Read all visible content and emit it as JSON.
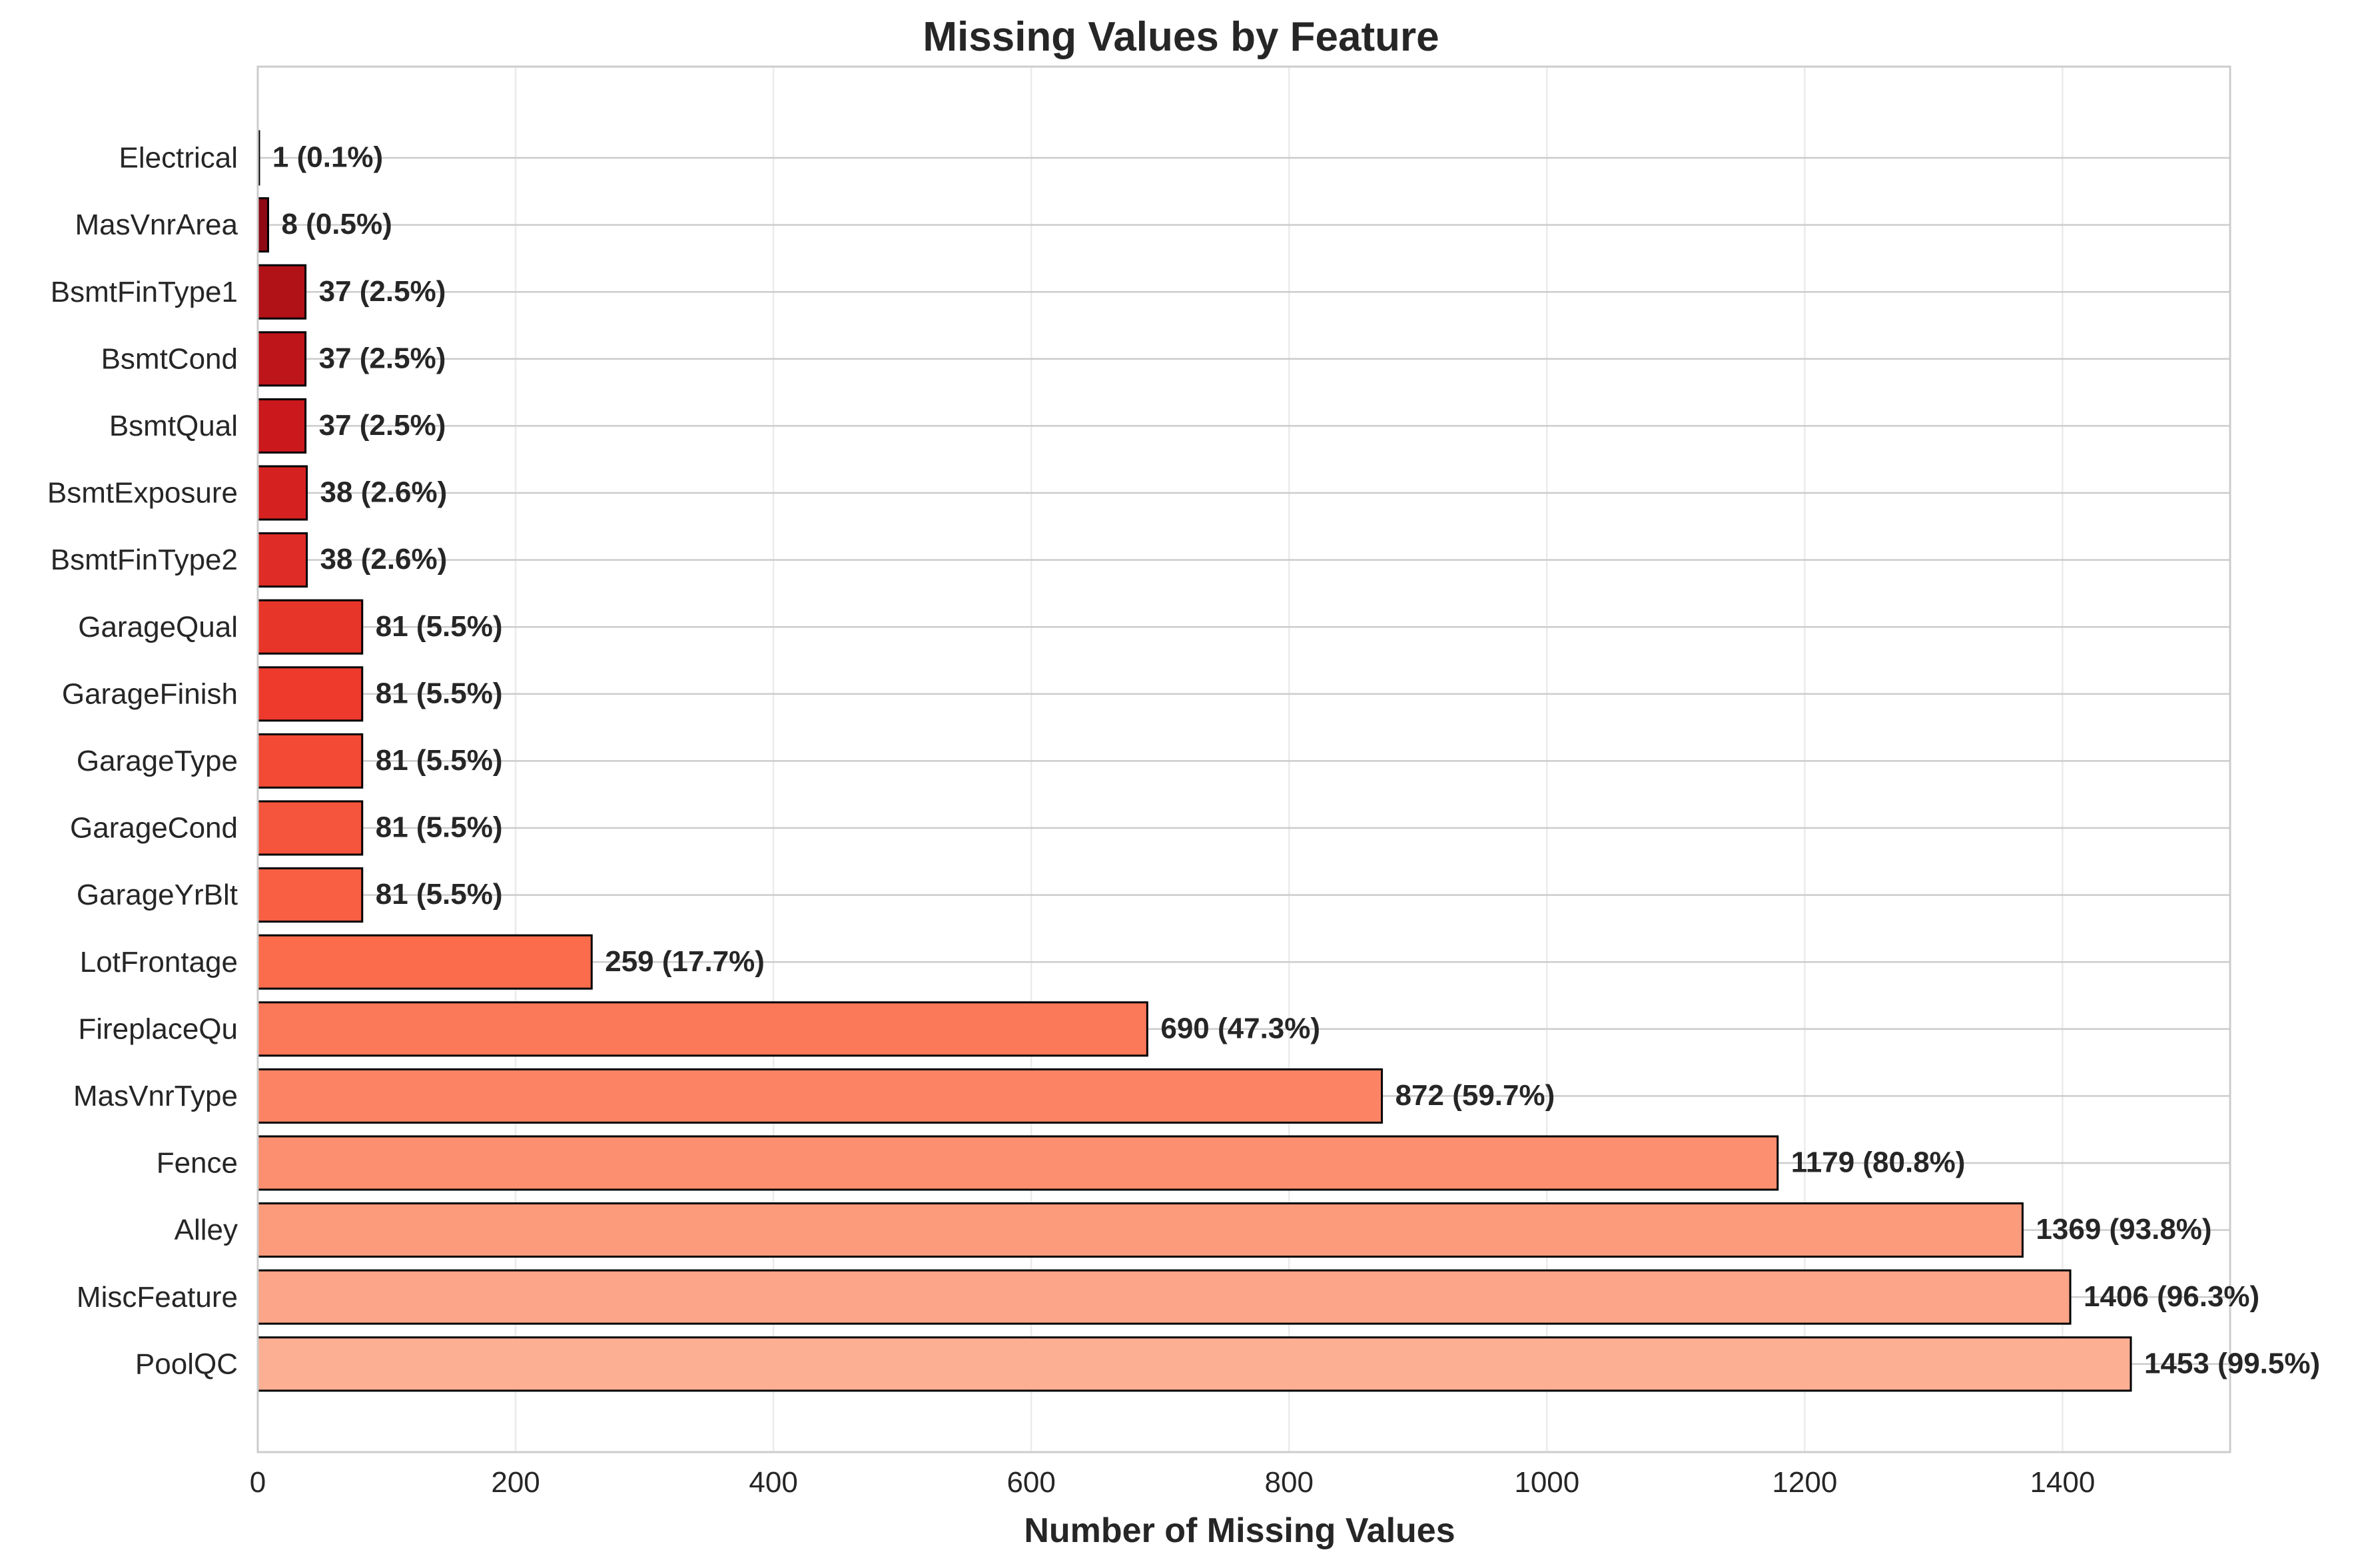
{
  "chart_data": {
    "type": "bar",
    "orientation": "horizontal",
    "title": "Missing Values by Feature",
    "xlabel": "Number of Missing Values",
    "ylabel": "",
    "xlim": [
      0,
      1530
    ],
    "xticks": [
      0,
      200,
      400,
      600,
      800,
      1000,
      1200,
      1400
    ],
    "grid": true,
    "categories": [
      "Electrical",
      "MasVnrArea",
      "BsmtFinType1",
      "BsmtCond",
      "BsmtQual",
      "BsmtExposure",
      "BsmtFinType2",
      "GarageQual",
      "GarageFinish",
      "GarageType",
      "GarageCond",
      "GarageYrBlt",
      "LotFrontage",
      "FireplaceQu",
      "MasVnrType",
      "Fence",
      "Alley",
      "MiscFeature",
      "PoolQC"
    ],
    "values": [
      1,
      8,
      37,
      37,
      37,
      38,
      38,
      81,
      81,
      81,
      81,
      81,
      259,
      690,
      872,
      1179,
      1369,
      1406,
      1453
    ],
    "data_labels": [
      "1 (0.1%)",
      "8 (0.5%)",
      "37 (2.5%)",
      "37 (2.5%)",
      "37 (2.5%)",
      "38 (2.6%)",
      "38 (2.6%)",
      "81 (5.5%)",
      "81 (5.5%)",
      "81 (5.5%)",
      "81 (5.5%)",
      "81 (5.5%)",
      "259 (17.7%)",
      "690 (47.3%)",
      "872 (59.7%)",
      "1179 (80.8%)",
      "1369 (93.8%)",
      "1406 (96.3%)",
      "1453 (99.5%)"
    ],
    "colors": [
      "#67000d",
      "#8e0914",
      "#b01217",
      "#be151a",
      "#ca181d",
      "#d52221",
      "#e02c26",
      "#e83529",
      "#ee3a2c",
      "#f24a35",
      "#f5553c",
      "#f85f43",
      "#fb6c4c",
      "#fb7858",
      "#fc8464",
      "#fc8f6f",
      "#fc9b7c",
      "#fca588",
      "#fcaf93"
    ],
    "edge_color": "#000000",
    "grid_color": "#cccccc"
  }
}
